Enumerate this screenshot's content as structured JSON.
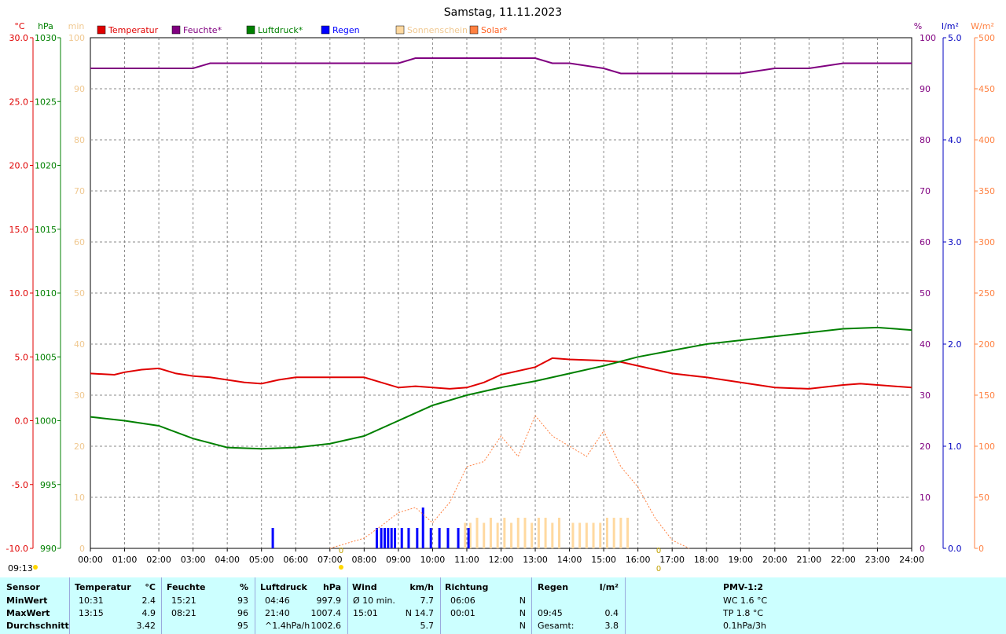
{
  "title": "Samstag, 11.11.2023",
  "axes_labels": {
    "temp": "°C",
    "pressure": "hPa",
    "sun": "min",
    "humidity": "%",
    "rain": "l/m²",
    "solar": "W/m²"
  },
  "temp_ticks": [
    "30.0",
    "25.0",
    "20.0",
    "15.0",
    "10.0",
    "5.0",
    "0.0",
    "-5.0",
    "-10.0"
  ],
  "pressure_ticks": [
    "1030",
    "1025",
    "1020",
    "1015",
    "1010",
    "1005",
    "1000",
    "995",
    "990"
  ],
  "sun_ticks": [
    "100",
    "90",
    "80",
    "70",
    "60",
    "50",
    "40",
    "30",
    "20",
    "10",
    "0"
  ],
  "humidity_ticks": [
    "100",
    "90",
    "80",
    "70",
    "60",
    "50",
    "40",
    "30",
    "20",
    "10",
    "0"
  ],
  "rain_ticks": [
    "5.0",
    "4.0",
    "3.0",
    "2.0",
    "1.0",
    "0.0"
  ],
  "solar_ticks": [
    "500",
    "450",
    "400",
    "350",
    "300",
    "250",
    "200",
    "150",
    "100",
    "50",
    "0"
  ],
  "x_ticks": [
    "00:00",
    "01:00",
    "02:00",
    "03:00",
    "04:00",
    "05:00",
    "06:00",
    "07:00",
    "08:00",
    "09:00",
    "10:00",
    "11:00",
    "12:00",
    "13:00",
    "14:00",
    "15:00",
    "16:00",
    "17:00",
    "18:00",
    "19:00",
    "20:00",
    "21:00",
    "22:00",
    "23:00",
    "24:00"
  ],
  "legend": [
    {
      "label": "Temperatur",
      "color": "#e00000"
    },
    {
      "label": "Feuchte*",
      "color": "#800080"
    },
    {
      "label": "Luftdruck*",
      "color": "#008000"
    },
    {
      "label": "Regen",
      "color": "#0000ff"
    },
    {
      "label": "Sonnenschein",
      "color": "#ffd9a0"
    },
    {
      "label": "Solar*",
      "color": "#ff8040"
    }
  ],
  "markers": {
    "sunrise_label": "09:13",
    "zero_label": "0"
  },
  "chart_data": {
    "type": "line",
    "title": "Samstag, 11.11.2023",
    "x_unit": "hour",
    "xlim": [
      0,
      24
    ],
    "series": [
      {
        "name": "Temperatur",
        "unit": "°C",
        "axis": [
          -10,
          30
        ],
        "color": "#e00000",
        "x": [
          0,
          0.7,
          1,
          1.5,
          2,
          2.5,
          3,
          3.5,
          4,
          4.5,
          5,
          5.5,
          6,
          7,
          8,
          8.5,
          9,
          9.5,
          10,
          10.5,
          11,
          11.5,
          12,
          13,
          13.5,
          14,
          15,
          15.5,
          16,
          17,
          18,
          19,
          20,
          21,
          22,
          22.5,
          23,
          24
        ],
        "y": [
          3.7,
          3.6,
          3.8,
          4.0,
          4.1,
          3.7,
          3.5,
          3.4,
          3.2,
          3.0,
          2.9,
          3.2,
          3.4,
          3.4,
          3.4,
          3.0,
          2.6,
          2.7,
          2.6,
          2.5,
          2.6,
          3.0,
          3.6,
          4.2,
          4.9,
          4.8,
          4.7,
          4.6,
          4.3,
          3.7,
          3.4,
          3.0,
          2.6,
          2.5,
          2.8,
          2.9,
          2.8,
          2.6
        ]
      },
      {
        "name": "Feuchte*",
        "unit": "%",
        "axis": [
          0,
          100
        ],
        "color": "#800080",
        "x": [
          0,
          3,
          3.5,
          4,
          5,
          6,
          8,
          8.5,
          9,
          9.5,
          10,
          11,
          12,
          13,
          13.5,
          14,
          15,
          15.5,
          16,
          17,
          18,
          19,
          20,
          21,
          22,
          23,
          24
        ],
        "y": [
          94,
          94,
          95,
          95,
          95,
          95,
          95,
          95,
          95,
          96,
          96,
          96,
          96,
          96,
          95,
          95,
          94,
          93,
          93,
          93,
          93,
          93,
          94,
          94,
          95,
          95,
          95
        ]
      },
      {
        "name": "Luftdruck*",
        "unit": "hPa",
        "axis": [
          990,
          1030
        ],
        "color": "#008000",
        "x": [
          0,
          1,
          2,
          3,
          4,
          5,
          6,
          7,
          8,
          9,
          10,
          11,
          12,
          13,
          14,
          15,
          16,
          17,
          18,
          19,
          20,
          21,
          22,
          23,
          24
        ],
        "y": [
          1000.3,
          1000.0,
          999.6,
          998.6,
          997.9,
          997.8,
          997.9,
          998.2,
          998.8,
          1000.0,
          1001.2,
          1002.0,
          1002.6,
          1003.1,
          1003.7,
          1004.3,
          1005.0,
          1005.5,
          1006.0,
          1006.3,
          1006.6,
          1006.9,
          1007.2,
          1007.3,
          1007.1
        ]
      },
      {
        "name": "Solar*",
        "unit": "W/m²",
        "axis": [
          0,
          500
        ],
        "color": "#ff8040",
        "x": [
          7,
          8,
          8.5,
          9,
          9.5,
          10,
          10.5,
          11,
          11.5,
          12,
          12.5,
          13,
          13.5,
          14,
          14.5,
          15,
          15.5,
          16,
          16.5,
          17,
          17.5
        ],
        "y": [
          0,
          10,
          22,
          35,
          40,
          25,
          45,
          80,
          85,
          110,
          90,
          130,
          110,
          100,
          90,
          115,
          80,
          60,
          30,
          8,
          0
        ]
      },
      {
        "name": "Regen",
        "unit": "l/m²",
        "axis": [
          0,
          5
        ],
        "color": "#0000ff",
        "x": [
          5.33,
          8.37,
          8.5,
          8.6,
          8.7,
          8.8,
          8.9,
          9.1,
          9.3,
          9.55,
          9.72,
          9.95,
          10.2,
          10.45,
          10.75,
          11.05
        ],
        "y": [
          0.2,
          0.2,
          0.2,
          0.2,
          0.2,
          0.2,
          0.2,
          0.2,
          0.2,
          0.2,
          0.4,
          0.2,
          0.2,
          0.2,
          0.2,
          0.2
        ]
      },
      {
        "name": "Sonnenschein",
        "unit": "min",
        "axis": [
          0,
          100
        ],
        "color": "#ffd9a0",
        "x": [
          10.95,
          11.1,
          11.3,
          11.5,
          11.7,
          11.9,
          12.1,
          12.3,
          12.5,
          12.7,
          12.9,
          13.1,
          13.3,
          13.5,
          13.7,
          14.1,
          14.3,
          14.5,
          14.7,
          14.9,
          15.1,
          15.3,
          15.5,
          15.7
        ],
        "y": [
          5,
          5,
          6,
          5,
          6,
          5,
          6,
          5,
          6,
          6,
          5,
          6,
          6,
          5,
          6,
          5,
          5,
          5,
          5,
          5,
          6,
          6,
          6,
          6
        ]
      }
    ]
  },
  "stats": {
    "headers": {
      "sensor": "Sensor",
      "temp": "Temperatur",
      "temp_unit": "°C",
      "hum": "Feuchte",
      "hum_unit": "%",
      "press": "Luftdruck",
      "press_unit": "hPa",
      "wind": "Wind",
      "wind_unit": "km/h",
      "dir": "Richtung",
      "rain": "Regen",
      "rain_unit": "l/m²",
      "pmv": "PMV-1:2"
    },
    "rows": [
      {
        "label": "MinWert",
        "t_time": "10:31",
        "t_val": "2.4",
        "h_time": "15:21",
        "h_val": "93",
        "p_time": "04:46",
        "p_val": "997.9",
        "w_time": "Ø 10 min.",
        "w_val": "7.7",
        "d_time": "06:06",
        "d_val": "N",
        "r_time": "",
        "r_val": "",
        "pmv": "WC 1.6 °C"
      },
      {
        "label": "MaxWert",
        "t_time": "13:15",
        "t_val": "4.9",
        "h_time": "08:21",
        "h_val": "96",
        "p_time": "21:40",
        "p_val": "1007.4",
        "w_time": "15:01",
        "w_val": "N 14.7",
        "d_time": "00:01",
        "d_val": "N",
        "r_time": "09:45",
        "r_val": "0.4",
        "pmv": "TP 1.8 °C"
      },
      {
        "label": "Durchschnitt",
        "t_time": "",
        "t_val": "3.42",
        "h_time": "",
        "h_val": "95",
        "p_time": "^1.4hPa/h",
        "p_val": "1002.6",
        "w_time": "",
        "w_val": "5.7",
        "d_time": "",
        "d_val": "N",
        "r_time": "Gesamt:",
        "r_val": "3.8",
        "pmv": "0.1hPa/3h"
      }
    ]
  }
}
